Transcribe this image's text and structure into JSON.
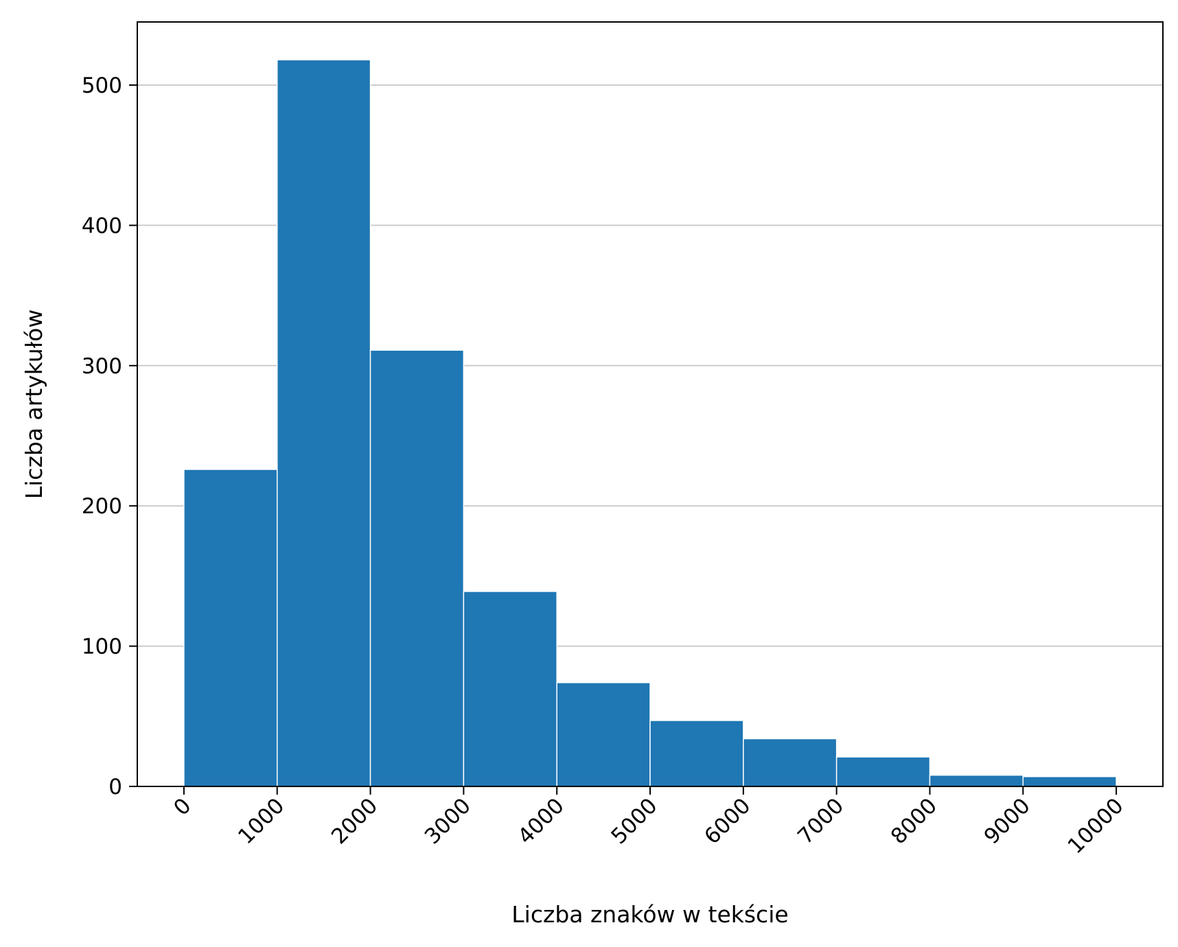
{
  "chart_data": {
    "type": "bar",
    "subtype": "histogram",
    "bin_edges": [
      0,
      1000,
      2000,
      3000,
      4000,
      5000,
      6000,
      7000,
      8000,
      9000,
      10000
    ],
    "values": [
      226,
      518,
      311,
      139,
      74,
      47,
      34,
      21,
      8,
      7
    ],
    "xlabel": "Liczba znaków w tekście",
    "ylabel": "Liczba artykułów",
    "xlim": [
      -500,
      10500
    ],
    "ylim": [
      0,
      545
    ],
    "x_ticks": [
      0,
      1000,
      2000,
      3000,
      4000,
      5000,
      6000,
      7000,
      8000,
      9000,
      10000
    ],
    "x_tick_labels": [
      "0",
      "1000",
      "2000",
      "3000",
      "4000",
      "5000",
      "6000",
      "7000",
      "8000",
      "9000",
      "10000"
    ],
    "y_ticks": [
      0,
      100,
      200,
      300,
      400,
      500
    ],
    "y_tick_labels": [
      "0",
      "100",
      "200",
      "300",
      "400",
      "500"
    ],
    "x_tick_rotation_deg": 45,
    "grid": "y",
    "legend": "none",
    "colors": {
      "bar": "#1f77b4",
      "bar_edge": "#ffffff",
      "grid": "#cccccc",
      "axis": "#000000"
    }
  }
}
